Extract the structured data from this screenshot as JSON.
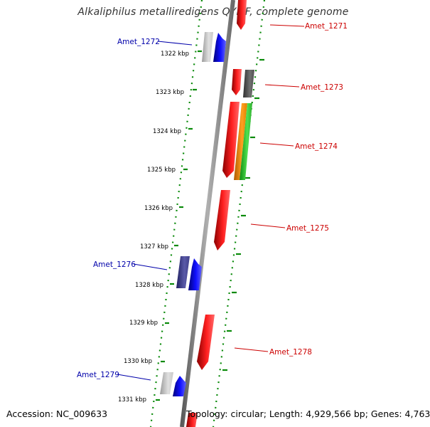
{
  "title": "Alkaliphilus metalliredigens QYMF, complete genome",
  "footer": {
    "accession": "Accession: NC_009633",
    "summary": "Topology: circular; Length: 4,929,566 bp; Genes: 4,763"
  },
  "colors": {
    "backbone": "#808080",
    "track_dots": "#0a8a0a",
    "forward_gene": "#ff0000",
    "reverse_gene": "#0000ff",
    "forward_label": "#cc0000",
    "reverse_label": "#0000aa"
  },
  "ruler": {
    "unit": "kbp",
    "ticks": [
      {
        "label": "1322 kbp",
        "kbp": 1322
      },
      {
        "label": "1323 kbp",
        "kbp": 1323
      },
      {
        "label": "1324 kbp",
        "kbp": 1324
      },
      {
        "label": "1325 kbp",
        "kbp": 1325
      },
      {
        "label": "1326 kbp",
        "kbp": 1326
      },
      {
        "label": "1327 kbp",
        "kbp": 1327
      },
      {
        "label": "1328 kbp",
        "kbp": 1328
      },
      {
        "label": "1329 kbp",
        "kbp": 1329
      },
      {
        "label": "1330 kbp",
        "kbp": 1330
      },
      {
        "label": "1331 kbp",
        "kbp": 1331
      }
    ]
  },
  "genes": [
    {
      "label": "Amet_1271",
      "strand": "forward"
    },
    {
      "label": "Amet_1272",
      "strand": "reverse"
    },
    {
      "label": "Amet_1273",
      "strand": "forward"
    },
    {
      "label": "Amet_1274",
      "strand": "forward"
    },
    {
      "label": "Amet_1275",
      "strand": "forward"
    },
    {
      "label": "Amet_1276",
      "strand": "reverse"
    },
    {
      "label": "Amet_1278",
      "strand": "forward"
    },
    {
      "label": "Amet_1279",
      "strand": "reverse"
    }
  ]
}
